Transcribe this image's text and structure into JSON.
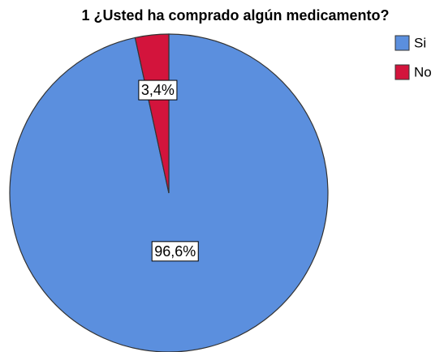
{
  "chart_data": {
    "type": "pie",
    "title": "1 ¿Usted ha comprado algún medicamento?",
    "categories": [
      "Si",
      "No"
    ],
    "values": [
      96.6,
      3.4
    ],
    "value_labels": [
      "96,6%",
      "3,4%"
    ],
    "colors": [
      "#5b8fde",
      "#d3143c"
    ],
    "legend": "right"
  }
}
